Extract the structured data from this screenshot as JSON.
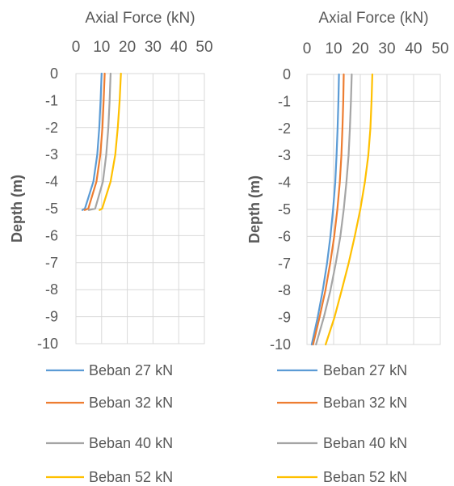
{
  "chart_data": [
    {
      "type": "line",
      "xlabel": "Axial Force (kN)",
      "ylabel": "Depth (m)",
      "xlim": [
        0,
        50
      ],
      "ylim": [
        -10,
        0
      ],
      "xticks": [
        "0",
        "10",
        "20",
        "30",
        "40",
        "50"
      ],
      "yticks": [
        "0",
        "-1",
        "-2",
        "-3",
        "-4",
        "-5",
        "-6",
        "-7",
        "-8",
        "-9",
        "-10"
      ],
      "x_axis_position": "top",
      "grid": true,
      "legend": "bottom",
      "series": [
        {
          "name": "Beban 27 kN",
          "color": "#5B9BD5",
          "points": [
            [
              10,
              0
            ],
            [
              9.6,
              -1
            ],
            [
              9.1,
              -2
            ],
            [
              8.3,
              -3
            ],
            [
              6.8,
              -4
            ],
            [
              3.5,
              -5
            ],
            [
              2.5,
              -5.05
            ]
          ]
        },
        {
          "name": "Beban 32 kN",
          "color": "#ED7D31",
          "points": [
            [
              11.2,
              0
            ],
            [
              10.8,
              -1
            ],
            [
              10.3,
              -2
            ],
            [
              9.5,
              -3
            ],
            [
              8.0,
              -4
            ],
            [
              4.8,
              -5
            ],
            [
              3.4,
              -5.05
            ]
          ]
        },
        {
          "name": "Beban 40 kN",
          "color": "#A5A5A5",
          "points": [
            [
              13.5,
              0
            ],
            [
              13.1,
              -1
            ],
            [
              12.6,
              -2
            ],
            [
              11.8,
              -3
            ],
            [
              10.5,
              -4
            ],
            [
              7.5,
              -5
            ],
            [
              5.0,
              -5.05
            ]
          ]
        },
        {
          "name": "Beban 52 kN",
          "color": "#FFC000",
          "points": [
            [
              17.5,
              0
            ],
            [
              17.0,
              -1
            ],
            [
              16.3,
              -2
            ],
            [
              15.3,
              -3
            ],
            [
              13.5,
              -4
            ],
            [
              10.2,
              -5
            ],
            [
              9.2,
              -5.05
            ]
          ]
        }
      ]
    },
    {
      "type": "line",
      "xlabel": "Axial Force (kN)",
      "ylabel": "Depth (m)",
      "xlim": [
        0,
        50
      ],
      "ylim": [
        -10,
        0
      ],
      "xticks": [
        "0",
        "10",
        "20",
        "30",
        "40",
        "50"
      ],
      "yticks": [
        "0",
        "-1",
        "-2",
        "-3",
        "-4",
        "-5",
        "-6",
        "-7",
        "-8",
        "-9",
        "-10"
      ],
      "x_axis_position": "top",
      "grid": true,
      "legend": "bottom",
      "series": [
        {
          "name": "Beban 27 kN",
          "color": "#5B9BD5",
          "points": [
            [
              12,
              0
            ],
            [
              11.8,
              -1
            ],
            [
              11.5,
              -2
            ],
            [
              11.1,
              -3
            ],
            [
              10.6,
              -4
            ],
            [
              9.8,
              -5
            ],
            [
              8.8,
              -6
            ],
            [
              7.5,
              -7
            ],
            [
              5.9,
              -8
            ],
            [
              4.0,
              -9
            ],
            [
              1.8,
              -10
            ]
          ]
        },
        {
          "name": "Beban 32 kN",
          "color": "#ED7D31",
          "points": [
            [
              13.8,
              0
            ],
            [
              13.6,
              -1
            ],
            [
              13.3,
              -2
            ],
            [
              12.9,
              -3
            ],
            [
              12.3,
              -4
            ],
            [
              11.4,
              -5
            ],
            [
              10.2,
              -6
            ],
            [
              8.7,
              -7
            ],
            [
              6.9,
              -8
            ],
            [
              4.7,
              -9
            ],
            [
              2.3,
              -10
            ]
          ]
        },
        {
          "name": "Beban 40 kN",
          "color": "#A5A5A5",
          "points": [
            [
              16.8,
              0
            ],
            [
              16.5,
              -1
            ],
            [
              16.1,
              -2
            ],
            [
              15.6,
              -3
            ],
            [
              14.8,
              -4
            ],
            [
              13.8,
              -5
            ],
            [
              12.5,
              -6
            ],
            [
              10.8,
              -7
            ],
            [
              8.8,
              -8
            ],
            [
              6.3,
              -9
            ],
            [
              3.4,
              -10
            ]
          ]
        },
        {
          "name": "Beban 52 kN",
          "color": "#FFC000",
          "points": [
            [
              24.5,
              0
            ],
            [
              24.2,
              -1
            ],
            [
              23.8,
              -2
            ],
            [
              23.0,
              -3
            ],
            [
              21.7,
              -4
            ],
            [
              20.0,
              -5
            ],
            [
              17.9,
              -6
            ],
            [
              15.6,
              -7
            ],
            [
              13.0,
              -8
            ],
            [
              10.3,
              -9
            ],
            [
              7.0,
              -10
            ]
          ]
        }
      ]
    }
  ]
}
